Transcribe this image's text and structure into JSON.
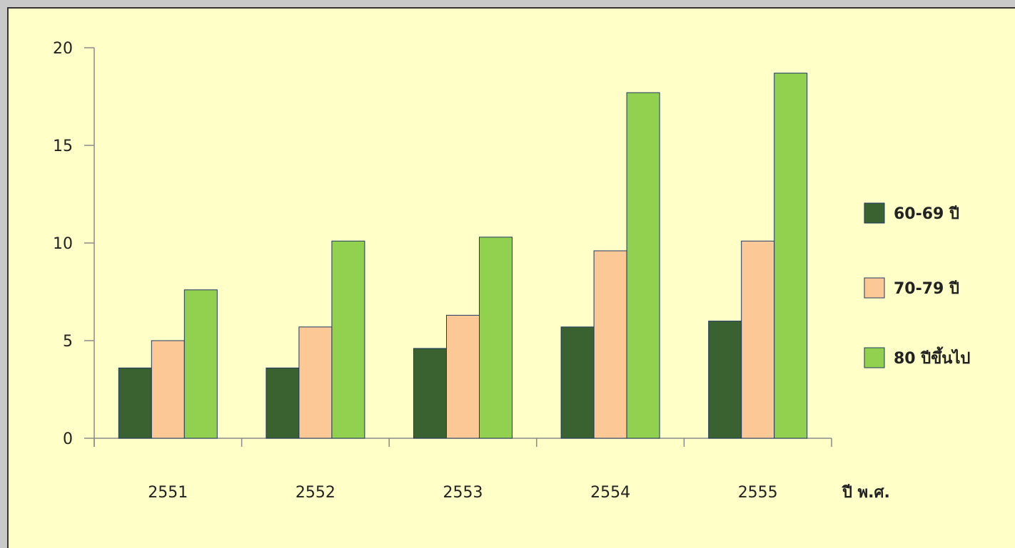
{
  "chart_data": {
    "type": "bar",
    "categories": [
      "2551",
      "2552",
      "2553",
      "2554",
      "2555"
    ],
    "series": [
      {
        "name": "60-69 ปี",
        "values": [
          3.6,
          3.6,
          4.6,
          5.7,
          6.0
        ],
        "color": "#3a6130"
      },
      {
        "name": "70-79 ปี",
        "values": [
          5.0,
          5.7,
          6.3,
          9.6,
          10.1
        ],
        "color": "#fbc896"
      },
      {
        "name": "80 ปีขึ้นไป",
        "values": [
          7.6,
          10.1,
          10.3,
          17.7,
          18.7
        ],
        "color": "#92d050"
      }
    ],
    "xlabel": "ปี พ.ศ.",
    "ylabel": "",
    "ylim": [
      0,
      20
    ],
    "yticks": [
      0,
      5,
      10,
      15,
      20
    ],
    "grid": false,
    "legend_position": "right",
    "background": "#ffffc8",
    "bar_outline": "#1f3864"
  }
}
